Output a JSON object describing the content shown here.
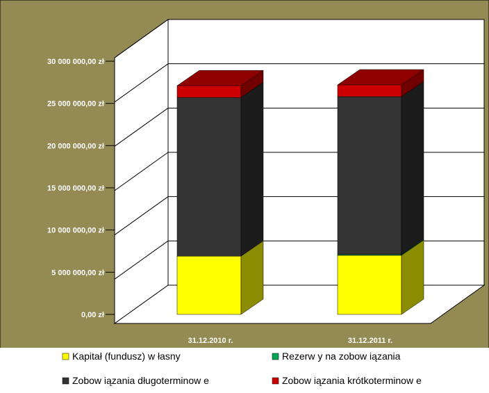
{
  "chart_data": {
    "type": "bar",
    "stacked": true,
    "three_d": true,
    "title": "",
    "xlabel": "",
    "ylabel": "",
    "categories": [
      "31.12.2010 r.",
      "31.12.2011 r."
    ],
    "series": [
      {
        "name": "Kapitał (fundusz) w łasny",
        "color": "#ffff00",
        "values": [
          6900000,
          7000000
        ]
      },
      {
        "name": "Rezerw y na zobow iązania",
        "color": "#00a651",
        "values": [
          0,
          100000
        ]
      },
      {
        "name": "Zobow iązania długoterminow e",
        "color": "#333333",
        "values": [
          18800000,
          18700000
        ]
      },
      {
        "name": "Zobow iązania krótkoterminow e",
        "color": "#cc0000",
        "values": [
          1400000,
          1400000
        ]
      }
    ],
    "ylim": [
      0,
      30000000
    ],
    "yticks": [
      0,
      5000000,
      10000000,
      15000000,
      20000000,
      25000000,
      30000000
    ],
    "ytick_labels": [
      "0,00 zł",
      "5 000 000,00 zł",
      "10 000 000,00 zł",
      "15 000 000,00 zł",
      "20 000 000,00 zł",
      "25 000 000,00 zł",
      "30 000 000,00 zł"
    ],
    "grid": true,
    "legend_position": "bottom",
    "colors": {
      "background": "#948a54",
      "plot_wall": "#ffffff",
      "gridline": "#000000"
    }
  }
}
